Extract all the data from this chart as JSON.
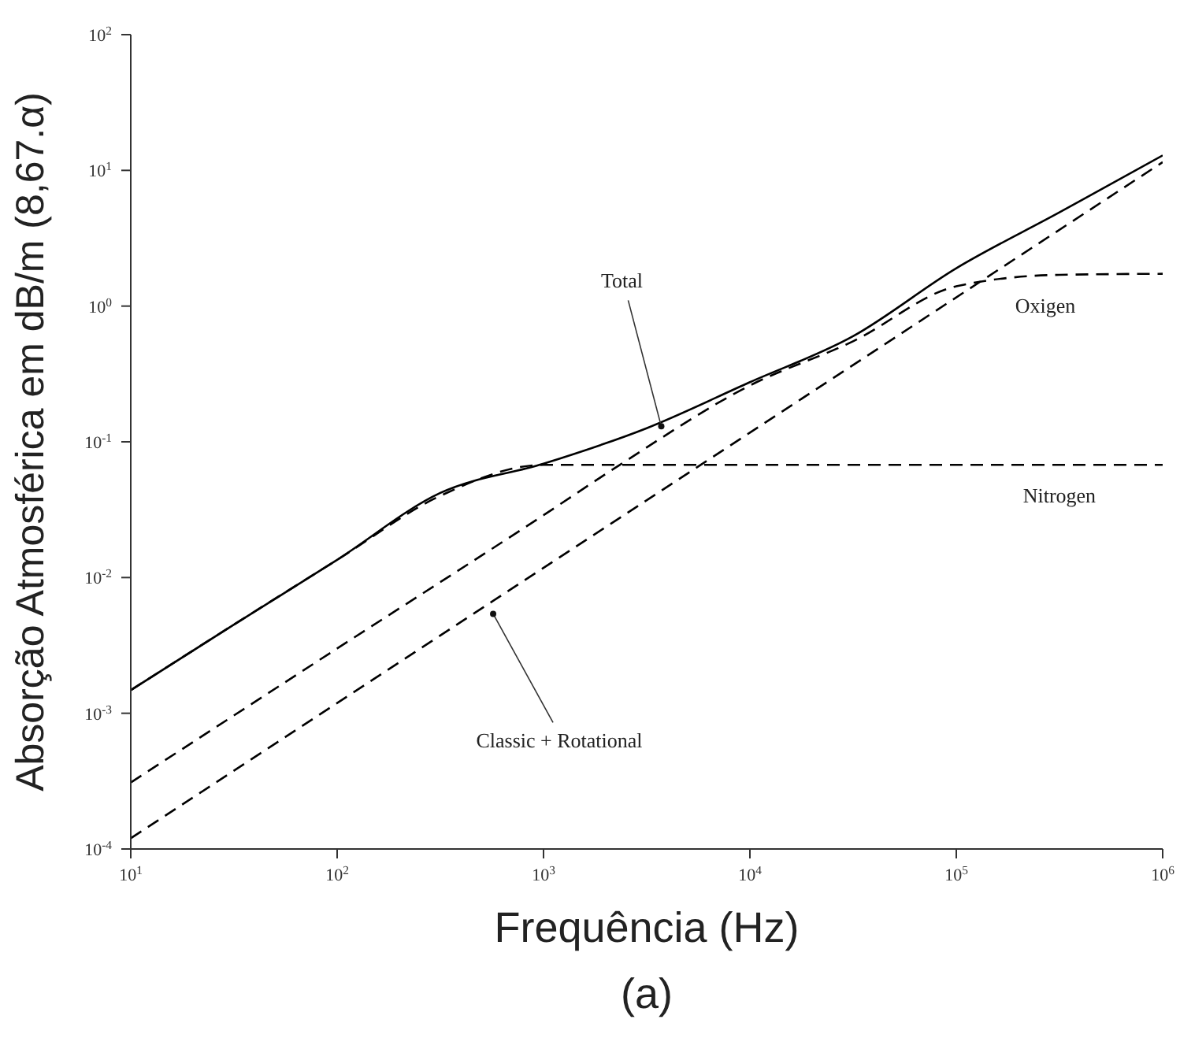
{
  "chart_data": {
    "type": "line",
    "xlabel": "Frequência (Hz)",
    "ylabel": "Absorção Atmosférica em dB/m (8,67.α)",
    "log": "xy",
    "grid": false,
    "marker": "none",
    "xlim": [
      10,
      1000000
    ],
    "xticks": [
      {
        "value": 10,
        "label": "10$^{1}$"
      },
      {
        "value": 100,
        "label": "10$^{2}$"
      },
      {
        "value": 1000,
        "label": "10$^{3}$"
      },
      {
        "value": 10000,
        "label": "10$^{4}$"
      },
      {
        "value": 100000,
        "label": "10$^{5}$"
      },
      {
        "value": 1000000,
        "label": "10$^{6}$"
      }
    ],
    "ylim": [
      0.0001,
      100
    ],
    "yticks": [
      {
        "value": 0.0001,
        "label": "10$^{-4}$"
      },
      {
        "value": 0.001,
        "label": "10$^{-3}$"
      },
      {
        "value": 0.01,
        "label": "10$^{-2}$"
      },
      {
        "value": 0.1,
        "label": "10$^{-1}$"
      },
      {
        "value": 1,
        "label": "10$^{0}$"
      },
      {
        "value": 10,
        "label": "10$^{1}$"
      },
      {
        "value": 100,
        "label": "10$^{2}$"
      }
    ],
    "series": [
      {
        "color": "#000000",
        "line_style": "solid",
        "x": [
          10,
          31.6,
          100,
          316,
          1000,
          3160,
          10000,
          31600,
          100000,
          316000,
          1000000
        ],
        "values": [
          0.00148,
          0.0045,
          0.0135,
          0.042,
          0.069,
          0.126,
          0.275,
          0.6,
          1.9,
          4.9,
          12.9
        ]
      },
      {
        "color": "#000000",
        "line_style": "dashed",
        "x": [
          10,
          31.6,
          100,
          316,
          1000,
          10000,
          1000000
        ],
        "values": [
          0.00148,
          0.0045,
          0.0135,
          0.04,
          0.0676,
          0.0676,
          0.0676
        ]
      },
      {
        "color": "#000000",
        "line_style": "dashed",
        "x": [
          10,
          100,
          1000,
          2340,
          10000,
          31600,
          100000,
          316000,
          1000000
        ],
        "values": [
          0.000309,
          0.003,
          0.0288,
          0.0676,
          0.26,
          0.55,
          1.4,
          1.7,
          1.73
        ]
      },
      {
        "color": "#000000",
        "line_style": "dashed",
        "x": [
          10,
          1000000
        ],
        "values": [
          0.00012,
          11.5
        ]
      }
    ],
    "annotations": [
      {
        "text": "Total",
        "x": 3720,
        "y": 0.13
      },
      {
        "text": "Classic + Rotational",
        "x": 570,
        "y": 0.0054
      },
      {
        "text": "Oxigen",
        "x": 316000,
        "y": 1.7
      },
      {
        "text": "Nitrogen",
        "x": 316000,
        "y": 0.0676
      },
      "(a)"
    ]
  }
}
